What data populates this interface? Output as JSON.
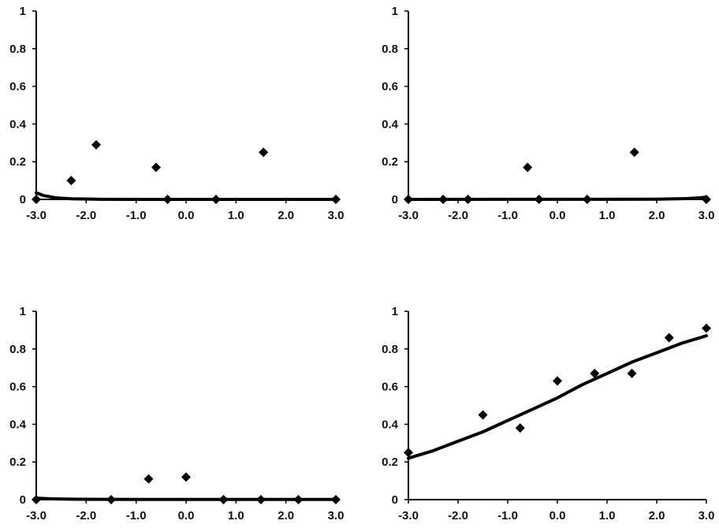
{
  "chart_data": [
    {
      "type": "scatter",
      "xlim": [
        -3,
        3
      ],
      "ylim": [
        0,
        1
      ],
      "xticks": [
        "-3.0",
        "-2.0",
        "-1.0",
        "0.0",
        "1.0",
        "2.0",
        "3.0"
      ],
      "yticks": [
        "0",
        "0.2",
        "0.4",
        "0.6",
        "0.8",
        "1"
      ],
      "points": [
        {
          "x": -3.0,
          "y": 0.0
        },
        {
          "x": -2.3,
          "y": 0.1
        },
        {
          "x": -1.8,
          "y": 0.29
        },
        {
          "x": -0.6,
          "y": 0.17
        },
        {
          "x": -0.37,
          "y": 0.0
        },
        {
          "x": 0.6,
          "y": 0.0
        },
        {
          "x": 1.55,
          "y": 0.25
        },
        {
          "x": 3.0,
          "y": 0.0
        }
      ],
      "curve": [
        {
          "x": -3.0,
          "y": 0.035
        },
        {
          "x": -2.85,
          "y": 0.02
        },
        {
          "x": -2.6,
          "y": 0.008
        },
        {
          "x": -2.3,
          "y": 0.003
        },
        {
          "x": -1.8,
          "y": 0.001
        },
        {
          "x": -1.0,
          "y": 0.0
        },
        {
          "x": 0.0,
          "y": 0.0
        },
        {
          "x": 3.0,
          "y": 0.0
        }
      ]
    },
    {
      "type": "scatter",
      "xlim": [
        -3,
        3
      ],
      "ylim": [
        0,
        1
      ],
      "xticks": [
        "-3.0",
        "-2.0",
        "-1.0",
        "0.0",
        "1.0",
        "2.0",
        "3.0"
      ],
      "yticks": [
        "0",
        "0.2",
        "0.4",
        "0.6",
        "0.8",
        "1"
      ],
      "points": [
        {
          "x": -3.0,
          "y": 0.0
        },
        {
          "x": -2.3,
          "y": 0.0
        },
        {
          "x": -1.8,
          "y": 0.0
        },
        {
          "x": -0.6,
          "y": 0.17
        },
        {
          "x": -0.37,
          "y": 0.0
        },
        {
          "x": 0.6,
          "y": 0.0
        },
        {
          "x": 1.55,
          "y": 0.25
        },
        {
          "x": 3.0,
          "y": 0.0
        }
      ],
      "curve": [
        {
          "x": -3.0,
          "y": 0.0
        },
        {
          "x": 2.0,
          "y": 0.001
        },
        {
          "x": 2.6,
          "y": 0.004
        },
        {
          "x": 2.85,
          "y": 0.008
        },
        {
          "x": 3.0,
          "y": 0.012
        }
      ]
    },
    {
      "type": "scatter",
      "xlim": [
        -3,
        3
      ],
      "ylim": [
        0,
        1
      ],
      "xticks": [
        "-3.0",
        "-2.0",
        "-1.0",
        "0.0",
        "1.0",
        "2.0",
        "3.0"
      ],
      "yticks": [
        "0",
        "0.2",
        "0.4",
        "0.6",
        "0.8",
        "1"
      ],
      "points": [
        {
          "x": -3.0,
          "y": 0.0
        },
        {
          "x": -1.5,
          "y": 0.0
        },
        {
          "x": -0.75,
          "y": 0.11
        },
        {
          "x": 0.0,
          "y": 0.12
        },
        {
          "x": 0.75,
          "y": 0.0
        },
        {
          "x": 1.5,
          "y": 0.0
        },
        {
          "x": 2.25,
          "y": 0.0
        },
        {
          "x": 3.0,
          "y": 0.0
        }
      ],
      "curve": [
        {
          "x": -3.0,
          "y": 0.008
        },
        {
          "x": -2.7,
          "y": 0.004
        },
        {
          "x": -2.2,
          "y": 0.002
        },
        {
          "x": -1.0,
          "y": 0.001
        },
        {
          "x": 3.0,
          "y": 0.001
        }
      ]
    },
    {
      "type": "scatter",
      "xlim": [
        -3,
        3
      ],
      "ylim": [
        0,
        1
      ],
      "xticks": [
        "-3.0",
        "-2.0",
        "-1.0",
        "0.0",
        "1.0",
        "2.0",
        "3.0"
      ],
      "yticks": [
        "0",
        "0.2",
        "0.4",
        "0.6",
        "0.8",
        "1"
      ],
      "points": [
        {
          "x": -3.0,
          "y": 0.25
        },
        {
          "x": -1.5,
          "y": 0.45
        },
        {
          "x": -0.75,
          "y": 0.38
        },
        {
          "x": 0.0,
          "y": 0.63
        },
        {
          "x": 0.75,
          "y": 0.67
        },
        {
          "x": 1.5,
          "y": 0.67
        },
        {
          "x": 2.25,
          "y": 0.86
        },
        {
          "x": 3.0,
          "y": 0.91
        }
      ],
      "curve": [
        {
          "x": -3.0,
          "y": 0.22
        },
        {
          "x": -2.5,
          "y": 0.26
        },
        {
          "x": -2.0,
          "y": 0.31
        },
        {
          "x": -1.5,
          "y": 0.36
        },
        {
          "x": -1.0,
          "y": 0.42
        },
        {
          "x": -0.5,
          "y": 0.48
        },
        {
          "x": 0.0,
          "y": 0.54
        },
        {
          "x": 0.5,
          "y": 0.61
        },
        {
          "x": 1.0,
          "y": 0.67
        },
        {
          "x": 1.5,
          "y": 0.73
        },
        {
          "x": 2.0,
          "y": 0.78
        },
        {
          "x": 2.5,
          "y": 0.83
        },
        {
          "x": 3.0,
          "y": 0.87
        }
      ]
    }
  ]
}
